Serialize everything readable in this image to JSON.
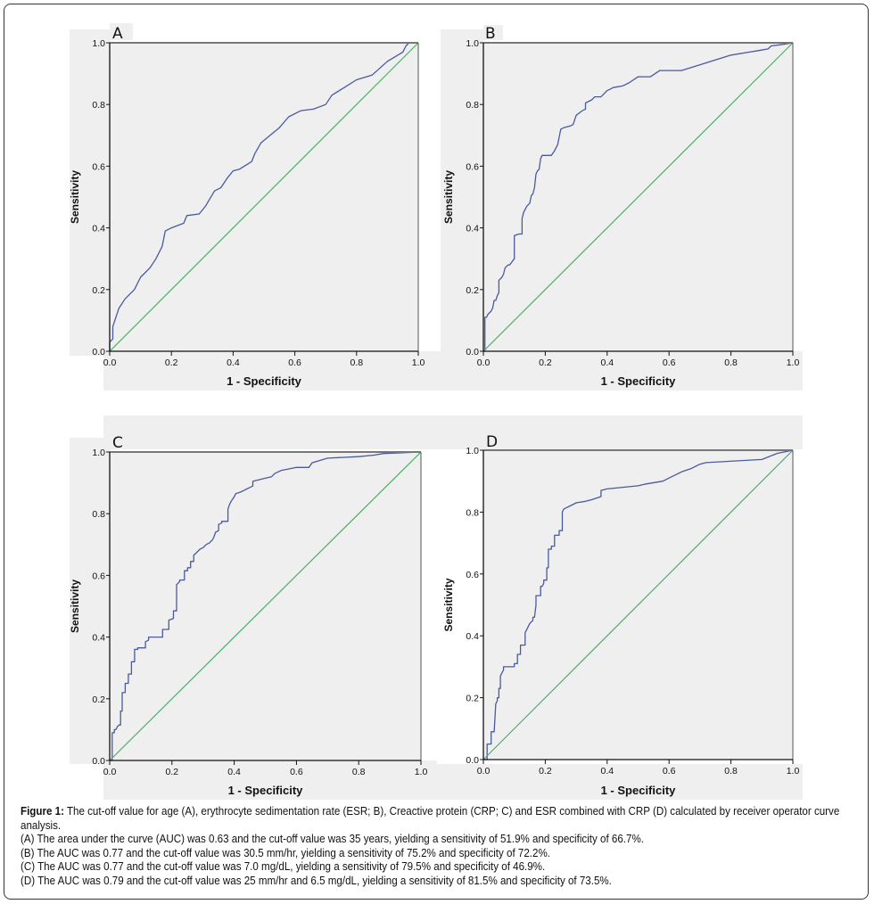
{
  "chart_data": [
    {
      "type": "line",
      "panel_label": "A",
      "title": "",
      "xlabel": "1 - Specificity",
      "ylabel": "Sensitivity",
      "xlim": [
        0,
        1
      ],
      "ylim": [
        0,
        1
      ],
      "xticks": [
        "0.0",
        "0.2",
        "0.4",
        "0.6",
        "0.8",
        "1.0"
      ],
      "yticks": [
        "0.0",
        "0.2",
        "0.4",
        "0.6",
        "0.8",
        "1.0"
      ],
      "grid": false,
      "series": [
        {
          "name": "ROC curve",
          "color": "#4a5a9c",
          "x": [
            0,
            0,
            0.01,
            0.01,
            0.03,
            0.05,
            0.08,
            0.1,
            0.11,
            0.13,
            0.15,
            0.17,
            0.18,
            0.2,
            0.24,
            0.25,
            0.29,
            0.31,
            0.34,
            0.36,
            0.38,
            0.4,
            0.42,
            0.46,
            0.47,
            0.49,
            0.52,
            0.55,
            0.58,
            0.62,
            0.66,
            0.7,
            0.72,
            0.76,
            0.8,
            0.85,
            0.9,
            0.95,
            0.96,
            0.97,
            1.0
          ],
          "y": [
            0,
            0.03,
            0.04,
            0.08,
            0.14,
            0.17,
            0.2,
            0.24,
            0.25,
            0.27,
            0.3,
            0.34,
            0.39,
            0.4,
            0.415,
            0.44,
            0.445,
            0.47,
            0.52,
            0.53,
            0.56,
            0.585,
            0.59,
            0.615,
            0.64,
            0.675,
            0.7,
            0.725,
            0.76,
            0.78,
            0.785,
            0.8,
            0.83,
            0.855,
            0.88,
            0.895,
            0.94,
            0.97,
            0.99,
            1.0,
            1.0
          ]
        },
        {
          "name": "Reference line",
          "color": "#4caf6a",
          "x": [
            0,
            1
          ],
          "y": [
            0,
            1
          ]
        }
      ]
    },
    {
      "type": "line",
      "panel_label": "B",
      "title": "",
      "xlabel": "1 - Specificity",
      "ylabel": "Sensitivity",
      "xlim": [
        0,
        1
      ],
      "ylim": [
        0,
        1
      ],
      "xticks": [
        "0.0",
        "0.2",
        "0.4",
        "0.6",
        "0.8",
        "1.0"
      ],
      "yticks": [
        "0.0",
        "0.2",
        "0.4",
        "0.6",
        "0.8",
        "1.0"
      ],
      "grid": false,
      "series": [
        {
          "name": "ROC curve",
          "color": "#4a5a9c",
          "x": [
            0,
            0.005,
            0.005,
            0.01,
            0.015,
            0.02,
            0.025,
            0.03,
            0.035,
            0.04,
            0.045,
            0.05,
            0.05,
            0.06,
            0.065,
            0.07,
            0.08,
            0.085,
            0.1,
            0.1,
            0.115,
            0.125,
            0.125,
            0.13,
            0.14,
            0.15,
            0.155,
            0.16,
            0.165,
            0.17,
            0.175,
            0.18,
            0.185,
            0.19,
            0.2,
            0.21,
            0.22,
            0.23,
            0.24,
            0.25,
            0.26,
            0.28,
            0.29,
            0.3,
            0.32,
            0.33,
            0.33,
            0.35,
            0.36,
            0.38,
            0.4,
            0.41,
            0.42,
            0.45,
            0.47,
            0.5,
            0.54,
            0.57,
            0.6,
            0.64,
            0.72,
            0.8,
            0.86,
            0.89,
            0.92,
            0.93,
            0.97,
            1.0
          ],
          "y": [
            0,
            0,
            0.11,
            0.11,
            0.12,
            0.125,
            0.13,
            0.14,
            0.165,
            0.165,
            0.18,
            0.19,
            0.23,
            0.24,
            0.25,
            0.27,
            0.28,
            0.28,
            0.3,
            0.375,
            0.38,
            0.38,
            0.43,
            0.45,
            0.47,
            0.48,
            0.505,
            0.51,
            0.53,
            0.575,
            0.585,
            0.59,
            0.625,
            0.635,
            0.635,
            0.635,
            0.635,
            0.65,
            0.67,
            0.72,
            0.725,
            0.73,
            0.735,
            0.765,
            0.78,
            0.785,
            0.805,
            0.815,
            0.825,
            0.825,
            0.845,
            0.85,
            0.855,
            0.86,
            0.87,
            0.89,
            0.89,
            0.91,
            0.91,
            0.91,
            0.935,
            0.96,
            0.97,
            0.975,
            0.98,
            0.99,
            0.995,
            1.0
          ]
        },
        {
          "name": "Reference line",
          "color": "#4caf6a",
          "x": [
            0,
            1
          ],
          "y": [
            0,
            1
          ]
        }
      ]
    },
    {
      "type": "line",
      "panel_label": "C",
      "title": "",
      "xlabel": "1 - Specificity",
      "ylabel": "Sensitivity",
      "xlim": [
        0,
        1
      ],
      "ylim": [
        0,
        1
      ],
      "xticks": [
        "0.0",
        "0.2",
        "0.4",
        "0.6",
        "0.8",
        "1.0"
      ],
      "yticks": [
        "0.0",
        "0.2",
        "0.4",
        "0.6",
        "0.8",
        "1.0"
      ],
      "grid": false,
      "series": [
        {
          "name": "ROC curve",
          "color": "#4a5a9c",
          "x": [
            0,
            0.008,
            0.008,
            0.015,
            0.015,
            0.02,
            0.025,
            0.03,
            0.035,
            0.035,
            0.04,
            0.04,
            0.05,
            0.05,
            0.06,
            0.06,
            0.07,
            0.07,
            0.08,
            0.08,
            0.09,
            0.09,
            0.115,
            0.115,
            0.125,
            0.125,
            0.17,
            0.17,
            0.19,
            0.19,
            0.205,
            0.205,
            0.215,
            0.215,
            0.225,
            0.225,
            0.24,
            0.24,
            0.25,
            0.25,
            0.26,
            0.26,
            0.27,
            0.27,
            0.28,
            0.29,
            0.3,
            0.31,
            0.32,
            0.33,
            0.335,
            0.34,
            0.35,
            0.35,
            0.36,
            0.36,
            0.38,
            0.38,
            0.385,
            0.39,
            0.4,
            0.405,
            0.42,
            0.43,
            0.44,
            0.45,
            0.46,
            0.46,
            0.5,
            0.52,
            0.53,
            0.55,
            0.6,
            0.64,
            0.65,
            0.7,
            0.8,
            0.85,
            0.88,
            1.0
          ],
          "y": [
            0,
            0,
            0.09,
            0.09,
            0.1,
            0.1,
            0.11,
            0.115,
            0.115,
            0.16,
            0.16,
            0.22,
            0.22,
            0.25,
            0.25,
            0.28,
            0.28,
            0.32,
            0.32,
            0.36,
            0.36,
            0.365,
            0.365,
            0.385,
            0.39,
            0.4,
            0.4,
            0.425,
            0.425,
            0.455,
            0.46,
            0.485,
            0.485,
            0.57,
            0.58,
            0.585,
            0.585,
            0.615,
            0.615,
            0.625,
            0.625,
            0.645,
            0.645,
            0.665,
            0.675,
            0.685,
            0.69,
            0.7,
            0.705,
            0.715,
            0.725,
            0.74,
            0.745,
            0.765,
            0.77,
            0.775,
            0.775,
            0.815,
            0.83,
            0.84,
            0.855,
            0.865,
            0.87,
            0.875,
            0.88,
            0.885,
            0.89,
            0.905,
            0.915,
            0.92,
            0.93,
            0.94,
            0.95,
            0.95,
            0.965,
            0.98,
            0.985,
            0.99,
            0.995,
            1.0
          ]
        },
        {
          "name": "Reference line",
          "color": "#4caf6a",
          "x": [
            0,
            1
          ],
          "y": [
            0,
            1
          ]
        }
      ]
    },
    {
      "type": "line",
      "panel_label": "D",
      "title": "",
      "xlabel": "1 - Specificity",
      "ylabel": "Sensitivity",
      "xlim": [
        0,
        1
      ],
      "ylim": [
        0,
        1
      ],
      "xticks": [
        "0.0",
        "0.2",
        "0.4",
        "0.6",
        "0.8",
        "1.0"
      ],
      "yticks": [
        "0.0",
        "0.2",
        "0.4",
        "0.6",
        "0.8",
        "1.0"
      ],
      "grid": false,
      "series": [
        {
          "name": "ROC curve",
          "color": "#4a5a9c",
          "x": [
            0,
            0.012,
            0.012,
            0.025,
            0.025,
            0.035,
            0.04,
            0.045,
            0.045,
            0.05,
            0.05,
            0.055,
            0.055,
            0.06,
            0.065,
            0.065,
            0.1,
            0.1,
            0.11,
            0.11,
            0.12,
            0.12,
            0.135,
            0.135,
            0.14,
            0.15,
            0.16,
            0.16,
            0.165,
            0.17,
            0.17,
            0.185,
            0.185,
            0.19,
            0.195,
            0.195,
            0.205,
            0.205,
            0.21,
            0.21,
            0.22,
            0.22,
            0.23,
            0.23,
            0.245,
            0.245,
            0.255,
            0.255,
            0.26,
            0.27,
            0.28,
            0.3,
            0.33,
            0.35,
            0.38,
            0.38,
            0.4,
            0.45,
            0.5,
            0.52,
            0.58,
            0.6,
            0.62,
            0.64,
            0.67,
            0.7,
            0.72,
            0.9,
            0.95,
            1.0
          ],
          "y": [
            0,
            0,
            0.05,
            0.05,
            0.09,
            0.09,
            0.18,
            0.19,
            0.2,
            0.2,
            0.23,
            0.23,
            0.27,
            0.28,
            0.29,
            0.3,
            0.3,
            0.31,
            0.31,
            0.34,
            0.34,
            0.37,
            0.37,
            0.41,
            0.42,
            0.44,
            0.45,
            0.46,
            0.46,
            0.5,
            0.53,
            0.53,
            0.56,
            0.56,
            0.57,
            0.58,
            0.58,
            0.62,
            0.62,
            0.68,
            0.68,
            0.69,
            0.69,
            0.725,
            0.725,
            0.74,
            0.74,
            0.8,
            0.81,
            0.815,
            0.82,
            0.83,
            0.835,
            0.84,
            0.85,
            0.87,
            0.875,
            0.88,
            0.885,
            0.89,
            0.9,
            0.91,
            0.92,
            0.93,
            0.94,
            0.955,
            0.96,
            0.97,
            0.99,
            1.0
          ]
        },
        {
          "name": "Reference line",
          "color": "#4caf6a",
          "x": [
            0,
            1
          ],
          "y": [
            0,
            1
          ]
        }
      ]
    }
  ],
  "caption": {
    "figure_label": "Figure 1:",
    "summary": "The cut-off value for age (A), erythrocyte sedimentation rate (ESR; B), Creactive protein (CRP; C) and ESR combined with CRP (D) calculated by receiver operator curve analysis.",
    "lines": [
      "(A) The area under the curve (AUC) was 0.63 and the cut-off value was 35 years, yielding a sensitivity of 51.9% and specificity of 66.7%.",
      "(B) The AUC was 0.77 and the cut-off value was 30.5 mm/hr, yielding a sensitivity of 75.2% and specificity of 72.2%.",
      "(C) The AUC was 0.77 and the cut-off value was 7.0 mg/dL, yielding a sensitivity of 79.5% and specificity of 46.9%.",
      "(D) The AUC was 0.79 and the cut-off value was 25 mm/hr and 6.5 mg/dL, yielding a sensitivity of 81.5% and specificity of 73.5%."
    ]
  }
}
